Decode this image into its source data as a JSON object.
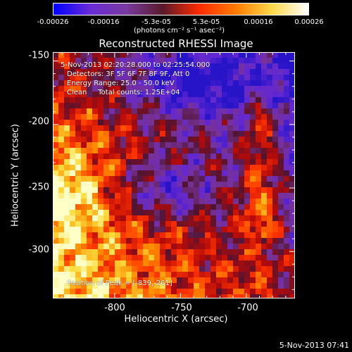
{
  "colorbar": {
    "ticks": [
      "-0.00026",
      "-0.00016",
      "-5.3e-05",
      "5.3e-05",
      "0.00016",
      "0.00026"
    ],
    "unit": "(photons cm⁻² s⁻¹ asec⁻²)",
    "colors": [
      "#0000ff",
      "#6a2bd8",
      "#7a3aa0",
      "#5a1a2a",
      "#ff2a00",
      "#ff7a00",
      "#ffd84a",
      "#ffffff"
    ]
  },
  "header": {
    "title": "Reconstructed RHESSI Image"
  },
  "overlay": {
    "time_range": "5-Nov-2013 02:20:28.000 to 02:25:54.000",
    "detectors": "Detectors: 3F 5F 6F 7F 8F 9F, Att 0",
    "energy": "Energy Range: 25.0 - 50.0 keV",
    "method": "Clean     Total counts: 1.25E+04",
    "peak": "Position of Peak = [-839,-261]"
  },
  "footer": {
    "timestamp": "5-Nov-2013 07:41"
  },
  "chart_data": {
    "type": "heatmap",
    "title": "Reconstructed RHESSI Image",
    "xlabel": "Heliocentric X (arcsec)",
    "ylabel": "Heliocentric Y (arcsec)",
    "xlim": [
      -847,
      -663
    ],
    "ylim": [
      -337,
      -143
    ],
    "xticks": [
      -800,
      -750,
      -700
    ],
    "yticks": [
      -150,
      -200,
      -250,
      -300
    ],
    "colorbar_range": [
      -0.00026,
      0.00026
    ],
    "peak_position": [
      -839,
      -261
    ]
  }
}
